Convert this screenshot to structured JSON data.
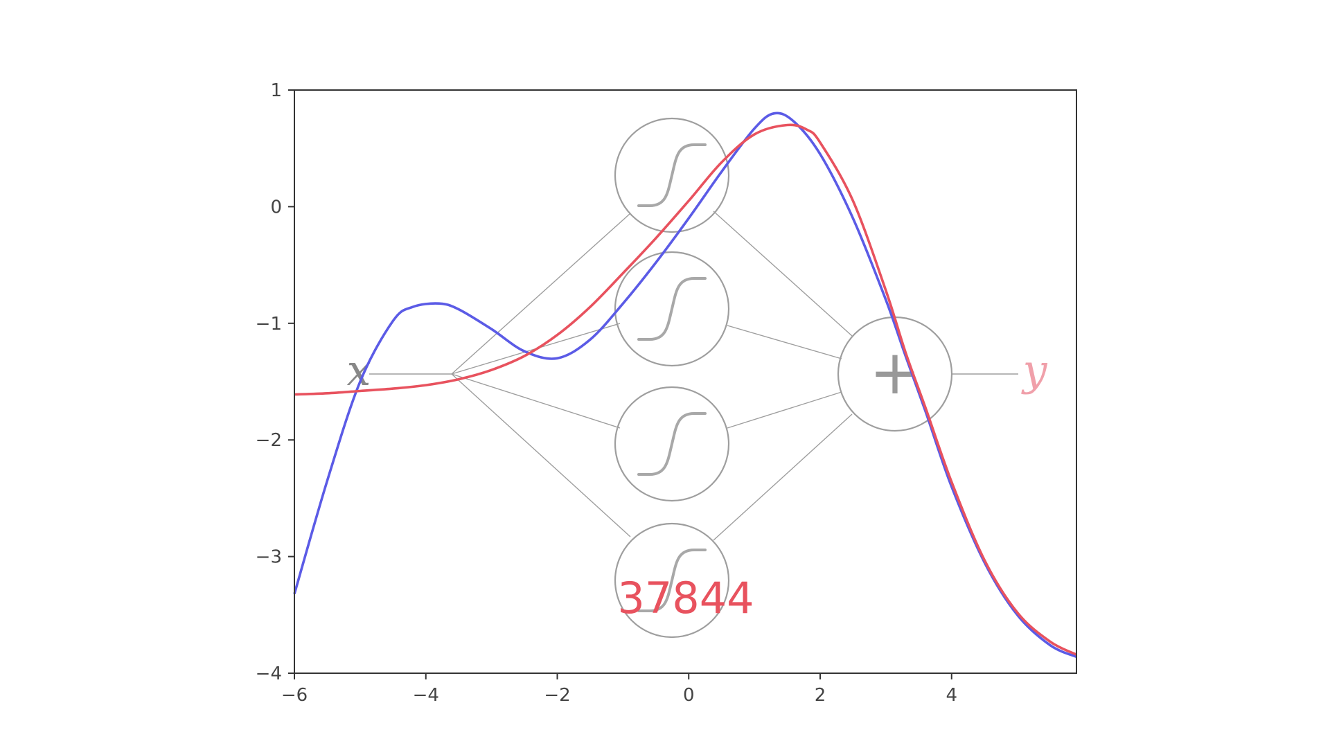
{
  "chart_data": {
    "type": "line",
    "title": "",
    "xlabel": "",
    "ylabel": "",
    "xlim": [
      -6,
      5.9
    ],
    "ylim": [
      -4,
      1
    ],
    "x_ticks": [
      -6,
      -4,
      -2,
      0,
      2,
      4
    ],
    "y_ticks": [
      -4,
      -3,
      -2,
      -1,
      0,
      1
    ],
    "x_tick_labels": [
      "−6",
      "−4",
      "−2",
      "0",
      "2",
      "4"
    ],
    "y_tick_labels": [
      "−4",
      "−3",
      "−2",
      "−1",
      "0",
      "1"
    ],
    "grid": false,
    "legend": "none",
    "series": [
      {
        "color": "#5b5be6",
        "x": [
          -6.0,
          -5.5,
          -5.0,
          -4.5,
          -4.2,
          -3.8,
          -3.5,
          -3.0,
          -2.5,
          -2.0,
          -1.5,
          -1.0,
          -0.5,
          0.0,
          0.5,
          1.0,
          1.3,
          1.6,
          2.0,
          2.5,
          3.0,
          3.3,
          3.6,
          4.0,
          4.5,
          5.0,
          5.5,
          5.9
        ],
        "y": [
          -3.32,
          -2.35,
          -1.5,
          -0.98,
          -0.86,
          -0.83,
          -0.88,
          -1.05,
          -1.24,
          -1.3,
          -1.14,
          -0.83,
          -0.48,
          -0.1,
          0.3,
          0.67,
          0.8,
          0.73,
          0.45,
          -0.1,
          -0.8,
          -1.28,
          -1.75,
          -2.4,
          -3.05,
          -3.5,
          -3.76,
          -3.86
        ]
      },
      {
        "color": "#e8525e",
        "x": [
          -6.0,
          -5.5,
          -5.0,
          -4.5,
          -4.0,
          -3.5,
          -3.0,
          -2.5,
          -2.0,
          -1.5,
          -1.0,
          -0.5,
          0.0,
          0.5,
          1.0,
          1.5,
          1.8,
          2.0,
          2.5,
          3.0,
          3.3,
          3.6,
          4.0,
          4.5,
          5.0,
          5.5,
          5.9
        ],
        "y": [
          -1.61,
          -1.6,
          -1.58,
          -1.56,
          -1.53,
          -1.48,
          -1.4,
          -1.28,
          -1.1,
          -0.86,
          -0.57,
          -0.27,
          0.05,
          0.38,
          0.62,
          0.7,
          0.66,
          0.55,
          0.05,
          -0.72,
          -1.25,
          -1.72,
          -2.36,
          -3.03,
          -3.48,
          -3.73,
          -3.84
        ]
      }
    ],
    "annotations": {
      "input_label": "x",
      "output_label": "y",
      "sum_symbol": "+",
      "counter": "37844"
    }
  },
  "colors": {
    "axis": "#333333",
    "network": "#9e9e9e",
    "input_label": "#888888",
    "output_label": "#f0a0aa",
    "counter": "#e8525e",
    "sum_symbol": "#999999"
  }
}
